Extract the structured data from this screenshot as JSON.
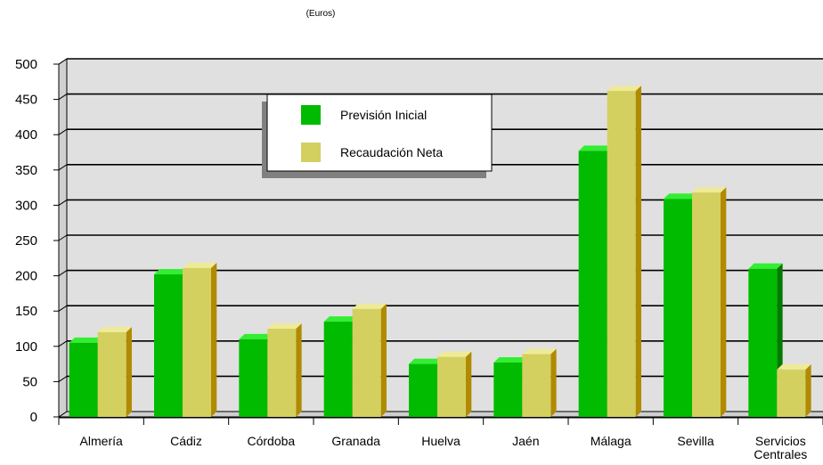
{
  "chart_data": {
    "type": "bar",
    "subtitle": "(Euros)",
    "categories": [
      "Almería",
      "Cádiz",
      "Córdoba",
      "Granada",
      "Huelva",
      "Jaén",
      "Málaga",
      "Sevilla",
      "Servicios Centrales"
    ],
    "series": [
      {
        "name": "Previsión Inicial",
        "color": "#00bb00",
        "side_color": "#007a00",
        "top_color": "#33ee33",
        "values": [
          105,
          202,
          110,
          135,
          75,
          77,
          377,
          309,
          210
        ]
      },
      {
        "name": "Recaudación Neta",
        "color": "#d4d060",
        "side_color": "#b08a00",
        "top_color": "#eeea99",
        "values": [
          120,
          211,
          125,
          153,
          85,
          89,
          462,
          318,
          67
        ]
      }
    ],
    "y_ticks": [
      "0",
      "50",
      "100",
      "150",
      "200",
      "250",
      "300",
      "350",
      "400",
      "450",
      "500"
    ],
    "ylim": [
      0,
      500
    ],
    "grid": true,
    "legend_placement": "top-left",
    "plot_background": "#e0e0e0"
  }
}
